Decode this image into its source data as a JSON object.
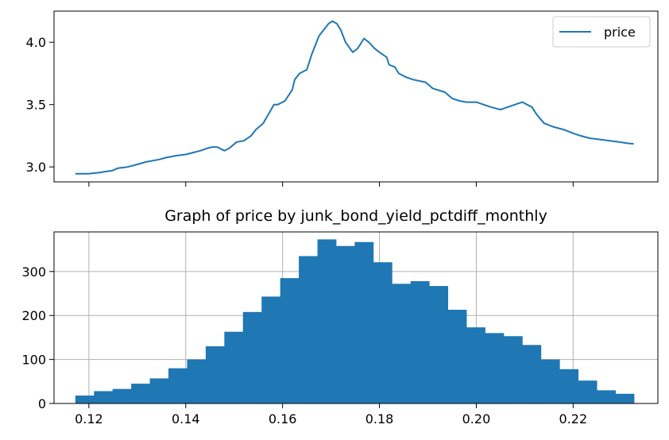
{
  "chart_data": [
    {
      "type": "line",
      "title": "",
      "xlabel": "",
      "ylabel": "",
      "ylim": [
        2.88,
        4.25
      ],
      "xlim": [
        0.1128,
        0.2375
      ],
      "y_ticks": [
        3.0,
        3.5,
        4.0
      ],
      "y_tick_labels": [
        "3.0",
        "3.5",
        "4.0"
      ],
      "x_tick_labels_visible": false,
      "grid": false,
      "legend": {
        "position": "top-right",
        "entries": [
          "price"
        ]
      },
      "color": "#1f77b4",
      "series": [
        {
          "name": "price",
          "x": [
            0.1172,
            0.12,
            0.121,
            0.1222,
            0.1235,
            0.1248,
            0.126,
            0.128,
            0.13,
            0.1318,
            0.1345,
            0.136,
            0.138,
            0.14,
            0.1415,
            0.143,
            0.1445,
            0.1455,
            0.1465,
            0.148,
            0.149,
            0.1505,
            0.152,
            0.1535,
            0.1545,
            0.156,
            0.1575,
            0.1582,
            0.159,
            0.1605,
            0.162,
            0.1625,
            0.1635,
            0.165,
            0.166,
            0.1668,
            0.1675,
            0.1685,
            0.1695,
            0.1703,
            0.1712,
            0.172,
            0.173,
            0.1745,
            0.1755,
            0.1768,
            0.1778,
            0.179,
            0.18,
            0.1815,
            0.182,
            0.1832,
            0.184,
            0.1855,
            0.187,
            0.1895,
            0.191,
            0.1935,
            0.195,
            0.1965,
            0.198,
            0.2,
            0.2015,
            0.203,
            0.205,
            0.2065,
            0.208,
            0.2095,
            0.2115,
            0.2125,
            0.214,
            0.216,
            0.218,
            0.22,
            0.2215,
            0.2235,
            0.2255,
            0.2275,
            0.2295,
            0.2312,
            0.2325
          ],
          "values": [
            2.945,
            2.945,
            2.95,
            2.955,
            2.963,
            2.97,
            2.99,
            3.0,
            3.02,
            3.04,
            3.06,
            3.075,
            3.09,
            3.1,
            3.115,
            3.13,
            3.15,
            3.16,
            3.16,
            3.13,
            3.15,
            3.2,
            3.21,
            3.25,
            3.3,
            3.35,
            3.45,
            3.5,
            3.5,
            3.53,
            3.62,
            3.7,
            3.75,
            3.78,
            3.9,
            3.98,
            4.05,
            4.1,
            4.15,
            4.17,
            4.15,
            4.1,
            4.0,
            3.92,
            3.95,
            4.03,
            4.0,
            3.95,
            3.92,
            3.88,
            3.82,
            3.8,
            3.75,
            3.72,
            3.7,
            3.68,
            3.63,
            3.6,
            3.55,
            3.53,
            3.52,
            3.52,
            3.5,
            3.48,
            3.46,
            3.48,
            3.5,
            3.52,
            3.48,
            3.42,
            3.35,
            3.32,
            3.3,
            3.27,
            3.25,
            3.23,
            3.22,
            3.21,
            3.2,
            3.19,
            3.185
          ]
        }
      ]
    },
    {
      "type": "bar",
      "title": "Graph of price by junk_bond_yield_pctdiff_monthly",
      "xlabel": "",
      "ylabel": "",
      "xlim": [
        0.1128,
        0.2375
      ],
      "ylim": [
        0,
        390
      ],
      "x_ticks": [
        0.12,
        0.14,
        0.16,
        0.18,
        0.2,
        0.22
      ],
      "x_tick_labels": [
        "0.12",
        "0.14",
        "0.16",
        "0.18",
        "0.20",
        "0.22"
      ],
      "y_ticks": [
        0,
        100,
        200,
        300
      ],
      "y_tick_labels": [
        "0",
        "100",
        "200",
        "300"
      ],
      "grid": true,
      "color": "#1f77b4",
      "bin_start": 0.1172,
      "bin_width": 0.003846,
      "values": [
        18,
        28,
        33,
        45,
        57,
        80,
        100,
        130,
        163,
        208,
        243,
        285,
        335,
        373,
        358,
        367,
        321,
        272,
        278,
        267,
        213,
        173,
        160,
        153,
        133,
        100,
        78,
        52,
        30,
        22
      ]
    }
  ]
}
